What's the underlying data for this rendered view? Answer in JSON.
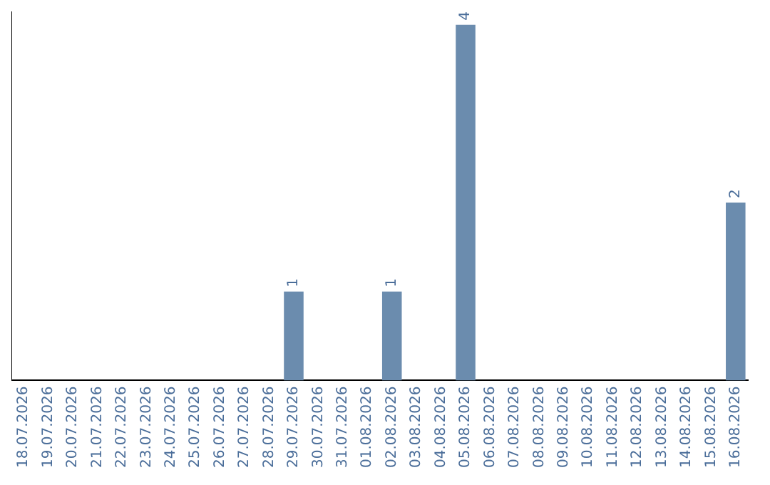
{
  "chart_data": {
    "type": "bar",
    "categories": [
      "18.07.2026",
      "19.07.2026",
      "20.07.2026",
      "21.07.2026",
      "22.07.2026",
      "23.07.2026",
      "24.07.2026",
      "25.07.2026",
      "26.07.2026",
      "27.07.2026",
      "28.07.2026",
      "29.07.2026",
      "30.07.2026",
      "31.07.2026",
      "01.08.2026",
      "02.08.2026",
      "03.08.2026",
      "04.08.2026",
      "05.08.2026",
      "06.08.2026",
      "07.08.2026",
      "08.08.2026",
      "09.08.2026",
      "10.08.2026",
      "11.08.2026",
      "12.08.2026",
      "13.08.2026",
      "14.08.2026",
      "15.08.2026",
      "16.08.2026"
    ],
    "values": [
      0,
      0,
      0,
      0,
      0,
      0,
      0,
      0,
      0,
      0,
      0,
      1,
      0,
      0,
      0,
      1,
      0,
      0,
      4,
      0,
      0,
      0,
      0,
      0,
      0,
      0,
      0,
      0,
      0,
      2
    ],
    "value_labels": [
      null,
      null,
      null,
      null,
      null,
      null,
      null,
      null,
      null,
      null,
      null,
      "1",
      null,
      null,
      null,
      "1",
      null,
      null,
      "4",
      null,
      null,
      null,
      null,
      null,
      null,
      null,
      null,
      null,
      null,
      "2"
    ],
    "color": "#6b8cae",
    "ylim": [
      0,
      4.15
    ],
    "tick_labels": "x",
    "grid": false,
    "legend": false
  }
}
